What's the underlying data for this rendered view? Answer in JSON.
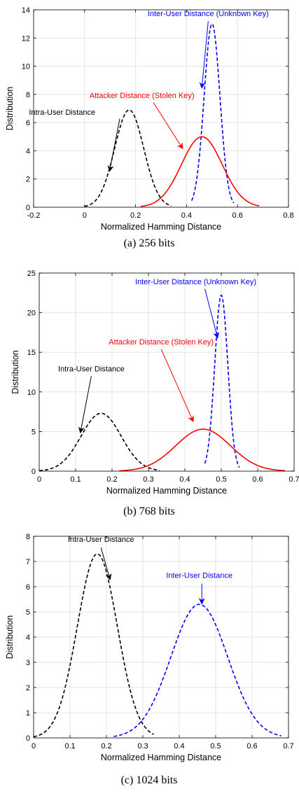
{
  "chart_data": [
    {
      "type": "line",
      "caption": "(a)  256 bits",
      "xlabel": "Normalized Hamming Distance",
      "ylabel": "Distribution",
      "xlim": [
        -0.2,
        0.8
      ],
      "ylim": [
        0,
        14
      ],
      "xticks": [
        -0.2,
        0,
        0.2,
        0.4,
        0.6,
        0.8
      ],
      "xtick_labels": [
        "-0.2",
        "0",
        "0.2",
        "0.4",
        "0.6",
        "0.8"
      ],
      "yticks": [
        0,
        2,
        4,
        6,
        8,
        10,
        12,
        14
      ],
      "ytick_labels": [
        "0",
        "2",
        "4",
        "6",
        "8",
        "10",
        "12",
        "14"
      ],
      "grid": true,
      "series": [
        {
          "mu": 0.175,
          "sigma": 0.057,
          "peak": 6.9,
          "xmin": 0.0,
          "xmax": 0.34,
          "color": "#000000",
          "dash": true
        },
        {
          "mu": 0.5,
          "sigma": 0.031,
          "peak": 13.0,
          "xmin": 0.42,
          "xmax": 0.585,
          "color": "#0000ff",
          "dash": true
        },
        {
          "mu": 0.46,
          "sigma": 0.08,
          "peak": 5.0,
          "xmin": 0.22,
          "xmax": 0.685,
          "color": "#ff0000",
          "dash": false
        }
      ],
      "annotations": [
        {
          "text": "Intra-User Distance",
          "color": "#000000",
          "text_x": -0.088,
          "text_y": 6.55,
          "from": [
            0.138,
            6.28
          ],
          "to": [
            0.098,
            2.55
          ]
        },
        {
          "text": "Attacker Distance (Stolen Key)",
          "color": "#ff0000",
          "text_x": 0.225,
          "text_y": 7.75,
          "from": [
            0.27,
            7.42
          ],
          "to": [
            0.385,
            4.15
          ]
        },
        {
          "text": "Inter-User Distance (Unknown Key)",
          "color": "#0000ff",
          "text_x": 0.485,
          "text_y": 13.55,
          "from": [
            0.485,
            13.2
          ],
          "to": [
            0.46,
            8.45
          ]
        }
      ]
    },
    {
      "type": "line",
      "caption": "(b)  768 bits",
      "xlabel": "Normalized Hamming Distance",
      "ylabel": "Distribution",
      "xlim": [
        0,
        0.7
      ],
      "ylim": [
        0,
        25
      ],
      "xticks": [
        0,
        0.1,
        0.2,
        0.3,
        0.4,
        0.5,
        0.6,
        0.7
      ],
      "xtick_labels": [
        "0",
        "0.1",
        "0.2",
        "0.3",
        "0.4",
        "0.5",
        "0.6",
        "0.7"
      ],
      "yticks": [
        0,
        5,
        10,
        15,
        20,
        25
      ],
      "ytick_labels": [
        "0",
        "5",
        "10",
        "15",
        "20",
        "25"
      ],
      "grid": true,
      "series": [
        {
          "mu": 0.17,
          "sigma": 0.055,
          "peak": 7.3,
          "xmin": 0.0,
          "xmax": 0.33,
          "color": "#000000",
          "dash": true
        },
        {
          "mu": 0.5,
          "sigma": 0.018,
          "peak": 22.2,
          "xmin": 0.455,
          "xmax": 0.55,
          "color": "#0000ff",
          "dash": true
        },
        {
          "mu": 0.45,
          "sigma": 0.075,
          "peak": 5.3,
          "xmin": 0.22,
          "xmax": 0.675,
          "color": "#ff0000",
          "dash": false
        }
      ],
      "annotations": [
        {
          "text": "Intra-User Distance",
          "color": "#000000",
          "text_x": 0.143,
          "text_y": 12.6,
          "from": [
            0.143,
            12.0
          ],
          "to": [
            0.113,
            4.85
          ]
        },
        {
          "text": "Attacker Distance (Stolen Key)",
          "color": "#ff0000",
          "text_x": 0.335,
          "text_y": 16.0,
          "from": [
            0.335,
            15.4
          ],
          "to": [
            0.423,
            6.25
          ]
        },
        {
          "text": "Inter-User Distance (Unknown Key)",
          "color": "#0000ff",
          "text_x": 0.43,
          "text_y": 23.6,
          "from": [
            0.455,
            23.0
          ],
          "to": [
            0.49,
            16.8
          ]
        }
      ]
    },
    {
      "type": "line",
      "caption": "(c)  1024 bits",
      "xlabel": "Normalized Hamming Distance",
      "ylabel": "Distribution",
      "xlim": [
        0,
        0.7
      ],
      "ylim": [
        0,
        8
      ],
      "xticks": [
        0,
        0.1,
        0.2,
        0.3,
        0.4,
        0.5,
        0.6,
        0.7
      ],
      "xtick_labels": [
        "0",
        "0.1",
        "0.2",
        "0.3",
        "0.4",
        "0.5",
        "0.6",
        "0.7"
      ],
      "yticks": [
        0,
        1,
        2,
        3,
        4,
        5,
        6,
        7,
        8
      ],
      "ytick_labels": [
        "0",
        "1",
        "2",
        "3",
        "4",
        "5",
        "6",
        "7",
        "8"
      ],
      "grid": true,
      "series": [
        {
          "mu": 0.175,
          "sigma": 0.055,
          "peak": 7.3,
          "xmin": 0.0,
          "xmax": 0.33,
          "color": "#000000",
          "dash": true
        },
        {
          "mu": 0.455,
          "sigma": 0.078,
          "peak": 5.3,
          "xmin": 0.22,
          "xmax": 0.68,
          "color": "#0000ff",
          "dash": true
        }
      ],
      "annotations": [
        {
          "text": "Intra-User Distance",
          "color": "#000000",
          "text_x": 0.185,
          "text_y": 7.78,
          "from": [
            0.185,
            7.55
          ],
          "to": [
            0.21,
            6.28
          ]
        },
        {
          "text": "Inter-User Distance",
          "color": "#0000ff",
          "text_x": 0.455,
          "text_y": 6.35,
          "from": [
            0.462,
            6.12
          ],
          "to": [
            0.462,
            5.32
          ]
        }
      ]
    }
  ]
}
